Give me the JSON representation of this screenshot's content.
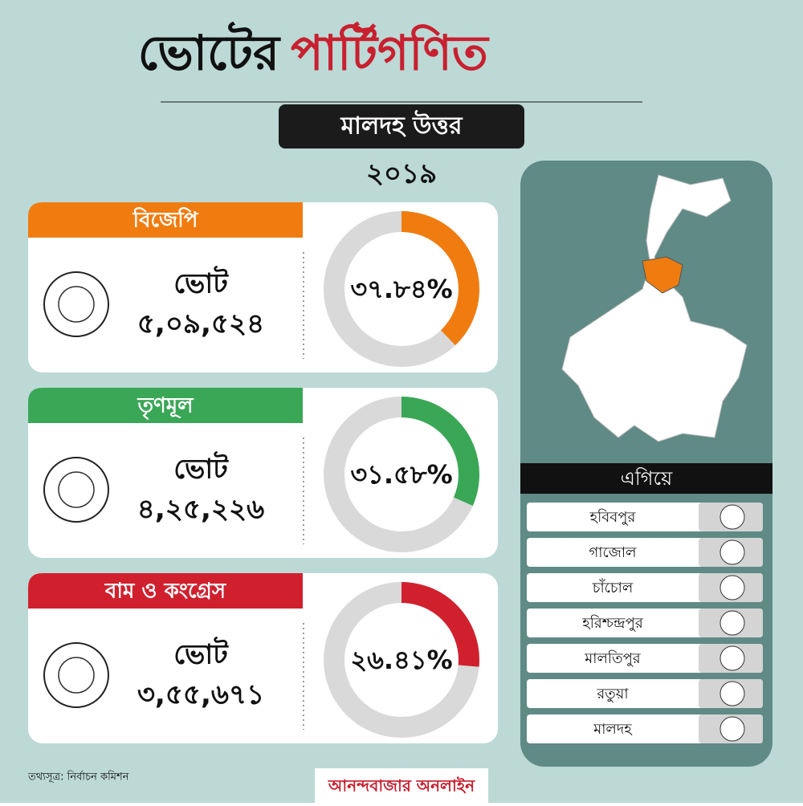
{
  "header": {
    "title_black": "ভোটের",
    "title_red": "পার্টিগণিত",
    "constituency": "মালদহ উত্তর",
    "year": "২০১৯"
  },
  "parties": [
    {
      "name": "বিজেপি",
      "color": "#f07c0f",
      "vote_label": "ভোট",
      "votes": "৫,০৯,৫২৪",
      "share": {
        "value": 37.84,
        "label": "৩৭.৮৪%"
      }
    },
    {
      "name": "তৃণমূল",
      "color": "#3aa757",
      "vote_label": "ভোট",
      "votes": "৪,২৫,২২৬",
      "share": {
        "value": 31.58,
        "label": "৩১.৫৮%"
      }
    },
    {
      "name": "বাম ও কংগ্রেস",
      "color": "#d0202e",
      "vote_label": "ভোট",
      "votes": "৩,৫৫,৬৭১",
      "share": {
        "value": 26.41,
        "label": "২৬.৪১%"
      }
    }
  ],
  "leads": {
    "title": "এগিয়ে",
    "rows": [
      "হবিবপুর",
      "গাজোল",
      "চাঁচোল",
      "হরিশ্চন্দ্রপুর",
      "মালতিপুর",
      "রতুয়া",
      "মালদহ"
    ]
  },
  "footer": {
    "source": "তথ্যসূত্র: নির্বাচন কমিশন",
    "brand": "আনন্দবাজার অনলাইন"
  }
}
